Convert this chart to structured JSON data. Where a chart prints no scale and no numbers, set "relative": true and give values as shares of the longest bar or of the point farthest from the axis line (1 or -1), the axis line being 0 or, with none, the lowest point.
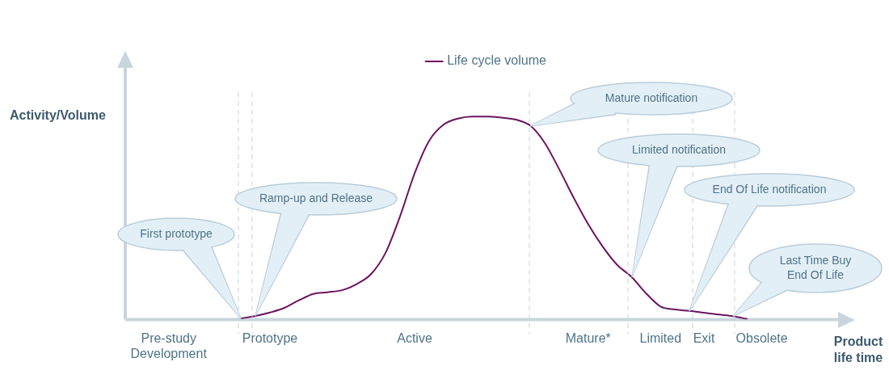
{
  "chart_data": {
    "type": "line",
    "relative": true,
    "ylabel": "Activity/Volume",
    "xlabel": "Product\nlife time",
    "categories": [
      null,
      null,
      null,
      "Pre-study\nDevelopment",
      null,
      null,
      null,
      null,
      null,
      null,
      "Prototype",
      null,
      null,
      null,
      null,
      null,
      null,
      null,
      null,
      null,
      "Active",
      null,
      null,
      null,
      null,
      null,
      null,
      null,
      null,
      null,
      null,
      null,
      "Mature*",
      null,
      null,
      null,
      null,
      "Limited",
      null,
      null,
      "Exit",
      null,
      null,
      null,
      "Obsolete",
      null,
      null,
      null,
      null,
      null,
      null
    ],
    "series": [
      {
        "name": "Life cycle volume",
        "color": "#6b1460",
        "values": [
          null,
          null,
          null,
          null,
          null,
          null,
          null,
          null,
          0.006,
          0.018,
          0.035,
          0.058,
          0.095,
          0.127,
          0.135,
          0.145,
          0.175,
          0.225,
          0.33,
          0.51,
          0.72,
          0.88,
          0.96,
          0.99,
          1,
          1,
          0.995,
          0.985,
          0.955,
          0.87,
          0.74,
          0.6,
          0.47,
          0.36,
          0.27,
          0.21,
          0.13,
          0.065,
          0.05,
          0.043,
          0.034,
          0.025,
          0.017,
          0.003,
          null,
          null,
          null,
          null,
          null,
          null,
          null
        ]
      }
    ],
    "annotations": [
      "First prototype",
      "Ramp-up and Release",
      "Mature notification",
      "Limited notification",
      "End Of Life notification",
      "Last Time Buy\nEnd Of Life"
    ],
    "legend": "top",
    "marker": "none",
    "line_style": "solid",
    "tick_labels": "x"
  }
}
